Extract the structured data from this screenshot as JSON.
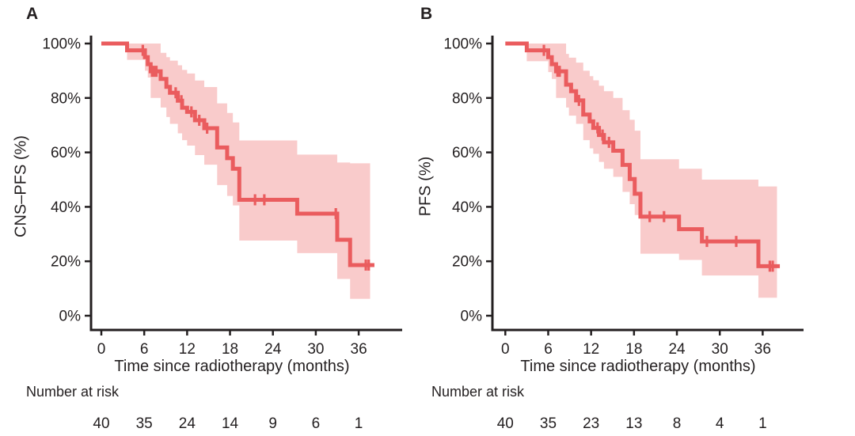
{
  "colors": {
    "curve": "#ea5c5e",
    "ci_band": "#f9cbcb",
    "axis": "#231f20",
    "text": "#231f20",
    "background": "#ffffff"
  },
  "chart_data": [
    {
      "type": "line",
      "subtype": "kaplan-meier",
      "title_letter": "A",
      "ylabel": "CNS–PFS (%)",
      "xlabel": "Time since radiotherapy (months)",
      "xlim": [
        0,
        42
      ],
      "ylim": [
        0,
        100
      ],
      "grid": false,
      "x_ticks": [
        0,
        6,
        12,
        18,
        24,
        30,
        36
      ],
      "x_tick_labels": [
        "0",
        "6",
        "12",
        "18",
        "24",
        "30",
        "36"
      ],
      "y_ticks": [
        0,
        20,
        40,
        60,
        80,
        100
      ],
      "y_tick_labels": [
        "0%",
        "20%",
        "40%",
        "60%",
        "80%",
        "100%"
      ],
      "end_time": 38.2,
      "band_end_time": 37.6,
      "steps": [
        [
          0,
          100
        ],
        [
          3.6,
          97.5
        ],
        [
          6.1,
          95.0
        ],
        [
          6.5,
          92.4
        ],
        [
          6.9,
          89.8
        ],
        [
          8.3,
          87.0
        ],
        [
          9.1,
          84.1
        ],
        [
          9.6,
          81.9
        ],
        [
          10.7,
          79.0
        ],
        [
          11.3,
          76.4
        ],
        [
          12.0,
          74.9
        ],
        [
          13.1,
          71.8
        ],
        [
          14.4,
          68.9
        ],
        [
          16.2,
          61.8
        ],
        [
          17.6,
          57.9
        ],
        [
          18.4,
          54.0
        ],
        [
          19.3,
          42.6
        ],
        [
          27.4,
          37.5
        ],
        [
          33.0,
          27.9
        ],
        [
          34.8,
          18.6
        ]
      ],
      "censors": [
        [
          5.8,
          97.5
        ],
        [
          7.1,
          89.8
        ],
        [
          7.4,
          89.8
        ],
        [
          7.7,
          89.8
        ],
        [
          10.4,
          81.9
        ],
        [
          11.2,
          79.0
        ],
        [
          12.6,
          74.9
        ],
        [
          13.7,
          71.8
        ],
        [
          14.8,
          68.9
        ],
        [
          21.5,
          42.6
        ],
        [
          22.8,
          42.6
        ],
        [
          32.8,
          37.5
        ],
        [
          37.0,
          18.6
        ],
        [
          37.4,
          18.6
        ]
      ],
      "ci_band": [
        [
          3.6,
          100,
          94
        ],
        [
          6.1,
          100,
          90
        ],
        [
          6.5,
          100,
          87.5
        ],
        [
          6.9,
          100,
          80
        ],
        [
          8.3,
          96.6,
          76.5
        ],
        [
          9.1,
          95,
          73
        ],
        [
          9.6,
          93.7,
          70.5
        ],
        [
          10.7,
          92,
          67
        ],
        [
          11.3,
          90.3,
          64.5
        ],
        [
          12.0,
          89,
          62.5
        ],
        [
          13.1,
          86.4,
          59
        ],
        [
          14.4,
          84,
          55.5
        ],
        [
          16.2,
          78,
          48
        ],
        [
          17.6,
          74.5,
          44
        ],
        [
          18.4,
          71,
          40.5
        ],
        [
          19.3,
          64.4,
          27.6
        ],
        [
          27.4,
          59.2,
          23
        ],
        [
          33.0,
          56.3,
          13.5
        ],
        [
          34.8,
          56,
          6.2
        ]
      ],
      "risk_label": "Number at risk",
      "risk_times": [
        0,
        6,
        12,
        18,
        24,
        30,
        36
      ],
      "risk_counts": [
        "40",
        "35",
        "24",
        "14",
        "9",
        "6",
        "1"
      ]
    },
    {
      "type": "line",
      "subtype": "kaplan-meier",
      "title_letter": "B",
      "ylabel": "PFS (%)",
      "xlabel": "Time since radiotherapy (months)",
      "xlim": [
        0,
        42
      ],
      "ylim": [
        0,
        100
      ],
      "grid": false,
      "x_ticks": [
        0,
        6,
        12,
        18,
        24,
        30,
        36
      ],
      "x_tick_labels": [
        "0",
        "6",
        "12",
        "18",
        "24",
        "30",
        "36"
      ],
      "y_ticks": [
        0,
        20,
        40,
        60,
        80,
        100
      ],
      "y_tick_labels": [
        "0%",
        "20%",
        "40%",
        "60%",
        "80%",
        "100%"
      ],
      "end_time": 38.4,
      "band_end_time": 38.0,
      "steps": [
        [
          0,
          100
        ],
        [
          3.0,
          97.5
        ],
        [
          6.0,
          95.0
        ],
        [
          6.5,
          92.4
        ],
        [
          7.1,
          89.8
        ],
        [
          8.5,
          84.9
        ],
        [
          9.2,
          82.5
        ],
        [
          9.9,
          79.1
        ],
        [
          10.9,
          73.9
        ],
        [
          11.8,
          71.4
        ],
        [
          12.3,
          69.0
        ],
        [
          13.1,
          66.4
        ],
        [
          13.8,
          63.7
        ],
        [
          15.1,
          60.6
        ],
        [
          16.4,
          55.4
        ],
        [
          17.4,
          50.2
        ],
        [
          18.1,
          44.8
        ],
        [
          18.9,
          36.4
        ],
        [
          24.3,
          31.8
        ],
        [
          27.5,
          27.3
        ],
        [
          35.4,
          18.2
        ]
      ],
      "censors": [
        [
          5.4,
          97.5
        ],
        [
          7.3,
          89.8
        ],
        [
          7.6,
          89.8
        ],
        [
          10.3,
          79.1
        ],
        [
          12.9,
          69.0
        ],
        [
          13.6,
          66.4
        ],
        [
          14.5,
          63.7
        ],
        [
          20.2,
          36.4
        ],
        [
          22.2,
          36.4
        ],
        [
          28.2,
          27.3
        ],
        [
          32.3,
          27.3
        ],
        [
          37.0,
          18.2
        ],
        [
          37.4,
          18.2
        ]
      ],
      "ci_band": [
        [
          3.0,
          100,
          93.5
        ],
        [
          6.0,
          100,
          89.5
        ],
        [
          6.5,
          100,
          87
        ],
        [
          7.1,
          100,
          80
        ],
        [
          8.5,
          96.2,
          76.5
        ],
        [
          8.9,
          94.8,
          73.5
        ],
        [
          9.9,
          93,
          70.5
        ],
        [
          10.9,
          90,
          64.5
        ],
        [
          11.8,
          88,
          61.5
        ],
        [
          12.3,
          86.5,
          59.5
        ],
        [
          13.1,
          84.5,
          56.5
        ],
        [
          13.8,
          82.5,
          54
        ],
        [
          15.1,
          80,
          51
        ],
        [
          16.4,
          75.5,
          45.5
        ],
        [
          17.4,
          72,
          41
        ],
        [
          18.1,
          68,
          37
        ],
        [
          18.9,
          57.5,
          22.8
        ],
        [
          24.3,
          54,
          20.5
        ],
        [
          27.5,
          50,
          14.8
        ],
        [
          35.4,
          47.5,
          6.6
        ]
      ],
      "risk_label": "Number at risk",
      "risk_times": [
        0,
        6,
        12,
        18,
        24,
        30,
        36
      ],
      "risk_counts": [
        "40",
        "35",
        "23",
        "13",
        "8",
        "4",
        "1"
      ]
    }
  ]
}
